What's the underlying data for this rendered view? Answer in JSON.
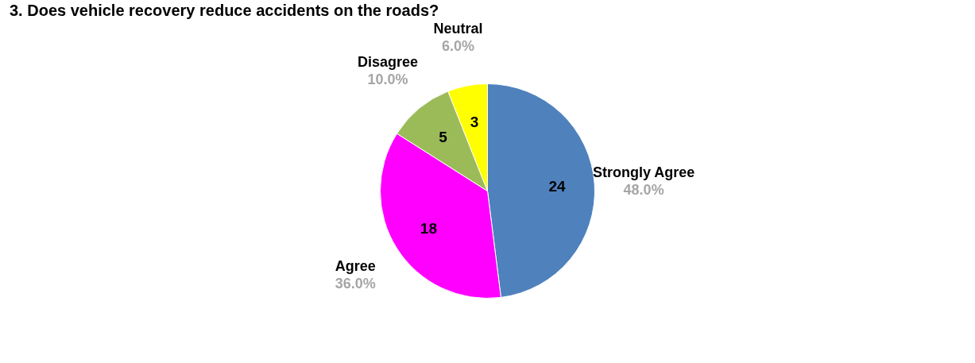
{
  "chart_data": {
    "type": "pie",
    "title": "3. Does vehicle recovery reduce accidents on the roads?",
    "categories": [
      "Strongly Agree",
      "Agree",
      "Disagree",
      "Neutral"
    ],
    "values": [
      24,
      18,
      5,
      3
    ],
    "colors": [
      "#4f81bd",
      "#ff00ff",
      "#9bbb59",
      "#ffff00"
    ],
    "data_labels": true,
    "annotations": [
      "48.0%",
      "36.0%",
      "10.0%",
      "6.0%"
    ],
    "legend": false
  }
}
